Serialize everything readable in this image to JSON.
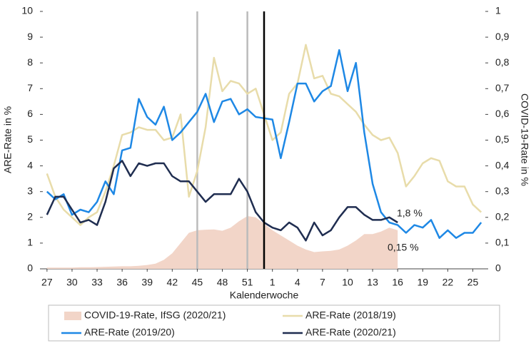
{
  "chart_data": {
    "type": "line",
    "x_label": "Kalenderwoche",
    "y_label": "ARE-Rate in %",
    "y2_label": "COVID-19-Rate in %",
    "categories": [
      "27",
      null,
      null,
      "30",
      null,
      null,
      "33",
      null,
      null,
      "36",
      null,
      null,
      "39",
      null,
      null,
      "42",
      null,
      null,
      "45",
      null,
      null,
      "48",
      null,
      null,
      "51",
      null,
      null,
      "1",
      null,
      null,
      "4",
      null,
      null,
      "7",
      null,
      null,
      "10",
      null,
      null,
      "13",
      null,
      null,
      "16",
      null,
      null,
      "19",
      null,
      null,
      "22",
      null,
      null,
      "25",
      null
    ],
    "ylim": [
      0,
      10
    ],
    "yticks": [
      0,
      1,
      2,
      3,
      4,
      5,
      6,
      7,
      8,
      9,
      10
    ],
    "y2lim": [
      0,
      1
    ],
    "y2ticks": [
      0,
      {
        "value": 0.1,
        "label": "0,1"
      },
      {
        "value": 0.2,
        "label": "0,2"
      },
      {
        "value": 0.3,
        "label": "0,3"
      },
      {
        "value": 0.4,
        "label": "0,4"
      },
      {
        "value": 0.5,
        "label": "0,5"
      },
      {
        "value": 0.6,
        "label": "0,6"
      },
      {
        "value": 0.7,
        "label": "0,7"
      },
      {
        "value": 0.8,
        "label": "0,8"
      },
      {
        "value": 0.9,
        "label": "0,9"
      },
      1
    ],
    "series": [
      {
        "name": "COVID-19-Rate, IfSG (2020/21)",
        "color": "#f2d5c8",
        "axis": "y2",
        "fill": true,
        "values": [
          0.005,
          0.005,
          0.005,
          0.005,
          0.006,
          0.006,
          0.007,
          0.008,
          0.009,
          0.01,
          0.01,
          0.012,
          0.015,
          0.02,
          0.035,
          0.06,
          0.1,
          0.14,
          0.15,
          0.152,
          0.153,
          0.148,
          0.16,
          0.185,
          0.205,
          0.2,
          0.175,
          0.15,
          0.13,
          0.11,
          0.09,
          0.075,
          0.065,
          0.068,
          0.07,
          0.075,
          0.09,
          0.11,
          0.135,
          0.135,
          0.145,
          0.16,
          0.15,
          null,
          null,
          null,
          null,
          null,
          null,
          null,
          null,
          null,
          null
        ]
      },
      {
        "name": "ARE-Rate (2018/19)",
        "color": "#e8dcaa",
        "values": [
          3.7,
          2.8,
          2.3,
          2.0,
          1.7,
          2.0,
          2.2,
          3.0,
          4.0,
          5.2,
          5.3,
          5.5,
          5.4,
          5.4,
          5.0,
          5.1,
          6.0,
          2.8,
          3.8,
          5.5,
          8.2,
          6.9,
          7.3,
          7.2,
          6.8,
          7.0,
          6.0,
          5.0,
          5.3,
          6.8,
          7.2,
          8.7,
          7.4,
          7.5,
          6.8,
          6.7,
          6.4,
          6.1,
          5.6,
          5.2,
          5.0,
          5.1,
          4.5,
          3.2,
          3.6,
          4.1,
          4.3,
          4.2,
          3.4,
          3.2,
          3.2,
          2.5,
          2.2
        ]
      },
      {
        "name": "ARE-Rate (2019/20)",
        "color": "#1e88e5",
        "values": [
          3.0,
          2.7,
          2.9,
          2.1,
          2.3,
          2.2,
          2.6,
          3.4,
          2.9,
          4.6,
          4.7,
          6.6,
          5.9,
          5.6,
          6.3,
          5.0,
          5.3,
          5.7,
          6.1,
          6.8,
          5.7,
          6.5,
          6.6,
          6.0,
          6.2,
          5.9,
          5.85,
          5.8,
          4.3,
          5.7,
          7.2,
          7.2,
          6.5,
          6.9,
          7.1,
          8.5,
          6.9,
          8.0,
          5.3,
          3.3,
          2.2,
          1.8,
          1.7,
          1.4,
          1.7,
          1.6,
          1.9,
          1.2,
          1.5,
          1.2,
          1.4,
          1.4,
          1.8
        ]
      },
      {
        "name": "ARE-Rate (2020/21)",
        "color": "#1f2d50",
        "values": [
          2.1,
          2.8,
          2.8,
          2.3,
          1.8,
          1.9,
          1.7,
          2.6,
          3.9,
          4.2,
          3.6,
          4.1,
          4.0,
          4.1,
          4.1,
          3.6,
          3.4,
          3.4,
          3.0,
          2.6,
          2.9,
          2.9,
          2.9,
          3.5,
          3.0,
          2.2,
          1.8,
          1.6,
          1.5,
          1.8,
          1.6,
          1.1,
          1.8,
          1.3,
          1.5,
          2.0,
          2.4,
          2.4,
          2.1,
          1.9,
          1.9,
          2.0,
          1.8,
          null,
          null,
          null,
          null,
          null,
          null,
          null,
          null,
          null,
          null
        ]
      }
    ],
    "annotations": [
      {
        "text": "1,8 %"
      },
      {
        "text": "0,15 %"
      }
    ]
  }
}
